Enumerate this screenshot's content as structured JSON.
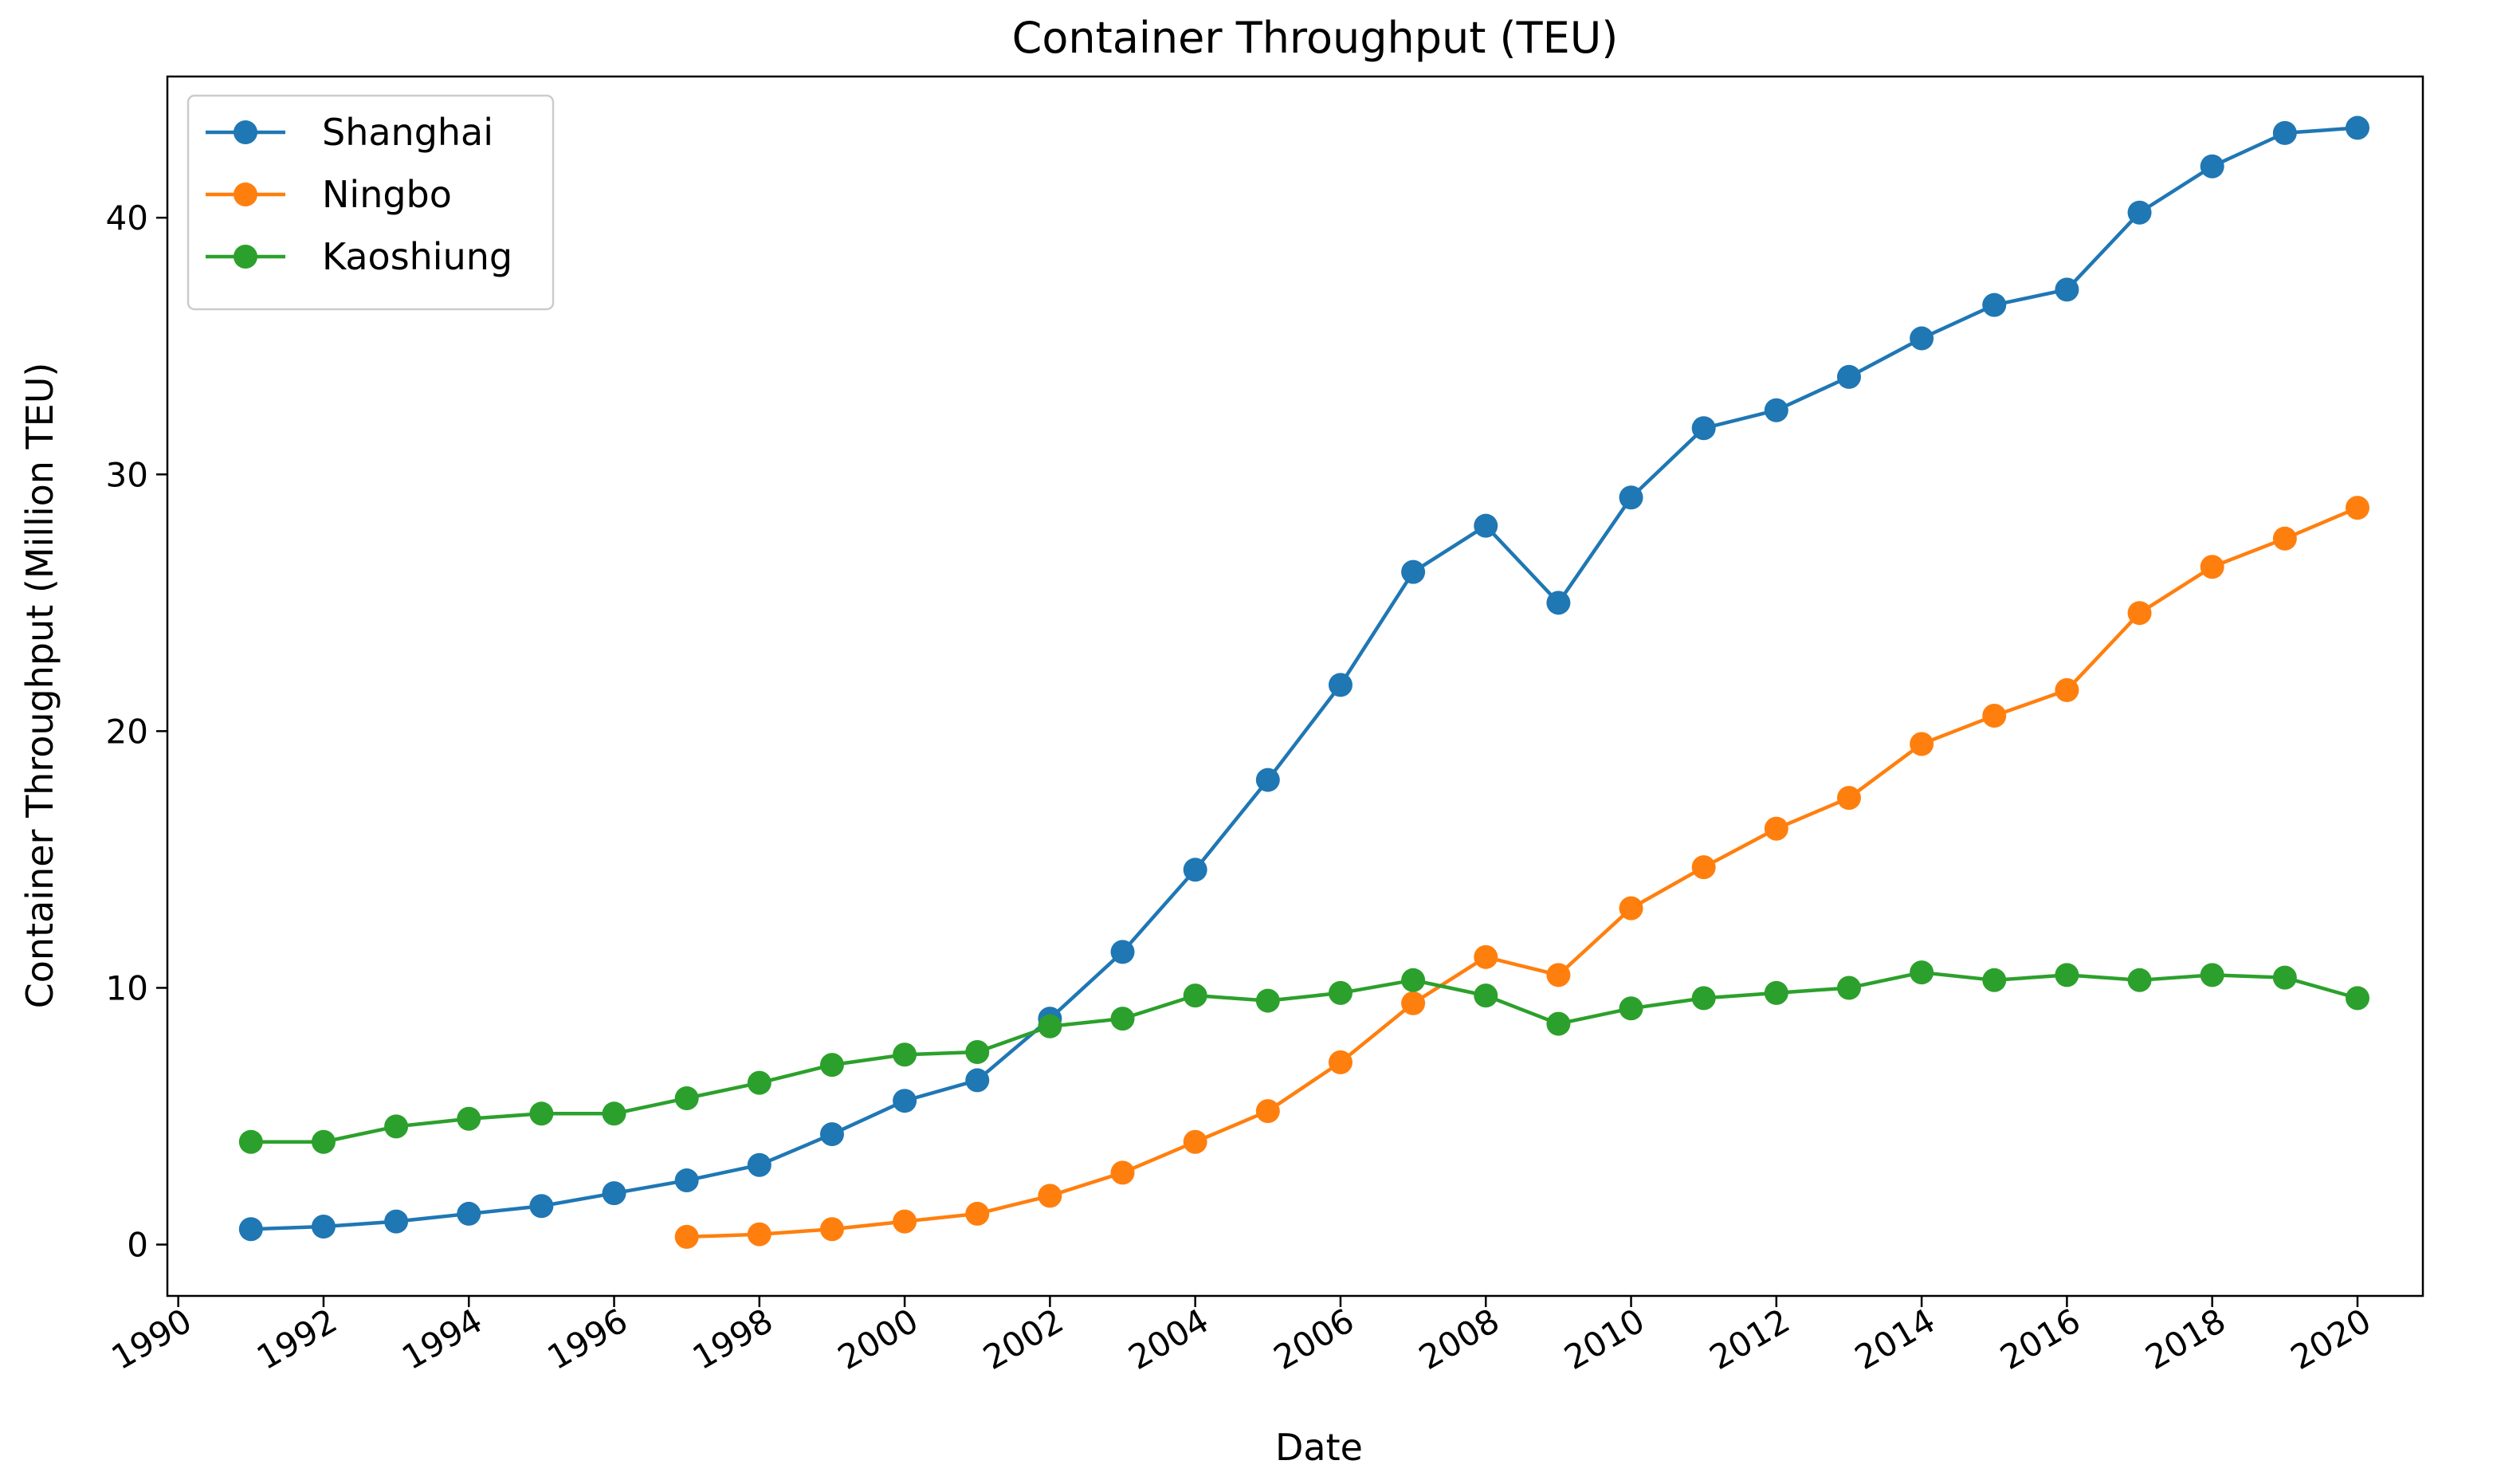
{
  "chart_data": {
    "type": "line",
    "title": "Container Throughput (TEU)",
    "xlabel": "Date",
    "ylabel": "Container Throughput (Million TEU)",
    "xlim": [
      1989.85,
      2020.9
    ],
    "ylim": [
      -2,
      45.5
    ],
    "xticks": [
      1990,
      1992,
      1994,
      1996,
      1998,
      2000,
      2002,
      2004,
      2006,
      2008,
      2010,
      2012,
      2014,
      2016,
      2018,
      2020
    ],
    "yticks": [
      0,
      10,
      20,
      30,
      40
    ],
    "grid": false,
    "legend_position": "top-left",
    "series": [
      {
        "name": "Shanghai",
        "color": "#1f77b4",
        "x": [
          1991,
          1992,
          1993,
          1994,
          1995,
          1996,
          1997,
          1998,
          1999,
          2000,
          2001,
          2002,
          2003,
          2004,
          2005,
          2006,
          2007,
          2008,
          2009,
          2010,
          2011,
          2012,
          2013,
          2014,
          2015,
          2016,
          2017,
          2018,
          2019,
          2020
        ],
        "values": [
          0.6,
          0.7,
          0.9,
          1.2,
          1.5,
          2.0,
          2.5,
          3.1,
          4.3,
          5.6,
          6.4,
          8.8,
          11.4,
          14.6,
          18.1,
          21.8,
          26.2,
          28.0,
          25.0,
          29.1,
          31.8,
          32.5,
          33.8,
          35.3,
          36.6,
          37.2,
          40.2,
          42.0,
          43.3,
          43.5
        ]
      },
      {
        "name": "Ningbo",
        "color": "#ff7f0e",
        "x": [
          1997,
          1998,
          1999,
          2000,
          2001,
          2002,
          2003,
          2004,
          2005,
          2006,
          2007,
          2008,
          2009,
          2010,
          2011,
          2012,
          2013,
          2014,
          2015,
          2016,
          2017,
          2018,
          2019,
          2020
        ],
        "values": [
          0.3,
          0.4,
          0.6,
          0.9,
          1.2,
          1.9,
          2.8,
          4.0,
          5.2,
          7.1,
          9.4,
          11.2,
          10.5,
          13.1,
          14.7,
          16.2,
          17.4,
          19.5,
          20.6,
          21.6,
          24.6,
          26.4,
          27.5,
          28.7
        ]
      },
      {
        "name": "Kaoshiung",
        "color": "#2ca02c",
        "x": [
          1991,
          1992,
          1993,
          1994,
          1995,
          1996,
          1997,
          1998,
          1999,
          2000,
          2001,
          2002,
          2003,
          2004,
          2005,
          2006,
          2007,
          2008,
          2009,
          2010,
          2011,
          2012,
          2013,
          2014,
          2015,
          2016,
          2017,
          2018,
          2019,
          2020
        ],
        "values": [
          4.0,
          4.0,
          4.6,
          4.9,
          5.1,
          5.1,
          5.7,
          6.3,
          7.0,
          7.4,
          7.5,
          8.5,
          8.8,
          9.7,
          9.5,
          9.8,
          10.3,
          9.7,
          8.6,
          9.2,
          9.6,
          9.8,
          10.0,
          10.6,
          10.3,
          10.5,
          10.3,
          10.5,
          10.4,
          9.6
        ]
      }
    ]
  }
}
